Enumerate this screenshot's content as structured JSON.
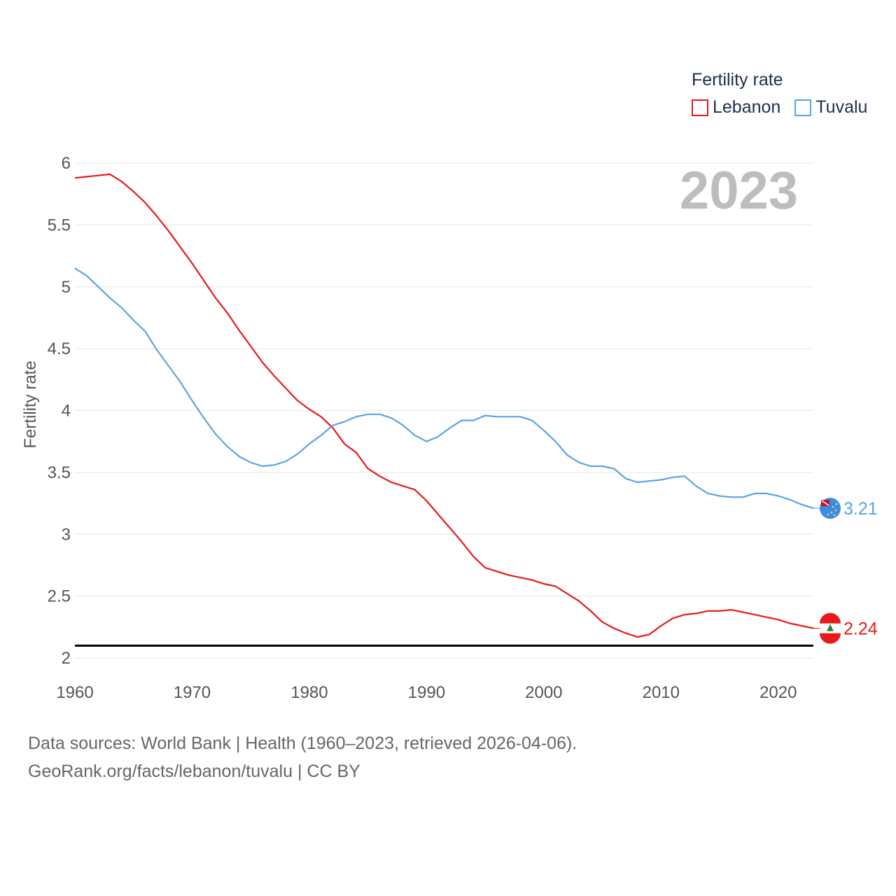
{
  "legend": {
    "title": "Fertility rate",
    "items": [
      {
        "label": "Lebanon",
        "color": "#e8191a"
      },
      {
        "label": "Tuvalu",
        "color": "#5ba3e6"
      }
    ]
  },
  "year_label": "2023",
  "sources": {
    "line1": "Data sources: World Bank | Health (1960–2023, retrieved 2026-04-06).",
    "line2": "GeoRank.org/facts/lebanon/tuvalu | CC BY"
  },
  "chart_data": {
    "type": "line",
    "title": "Fertility rate",
    "xlabel": "",
    "ylabel": "Fertility rate",
    "xlim": [
      1960,
      2023
    ],
    "ylim": [
      2,
      6
    ],
    "yticks": [
      2,
      2.5,
      3,
      3.5,
      4,
      4.5,
      5,
      5.5,
      6
    ],
    "yticklabels": [
      "2",
      "2.5",
      "3",
      "3.5",
      "4",
      "4.5",
      "5",
      "5.5",
      "6"
    ],
    "xticks": [
      1960,
      1970,
      1980,
      1990,
      2000,
      2010,
      2020
    ],
    "xticklabels": [
      "1960",
      "1970",
      "1980",
      "1990",
      "2000",
      "2010",
      "2020"
    ],
    "reference_line": 2.1,
    "x": [
      1960,
      1961,
      1962,
      1963,
      1964,
      1965,
      1966,
      1967,
      1968,
      1969,
      1970,
      1971,
      1972,
      1973,
      1974,
      1975,
      1976,
      1977,
      1978,
      1979,
      1980,
      1981,
      1982,
      1983,
      1984,
      1985,
      1986,
      1987,
      1988,
      1989,
      1990,
      1991,
      1992,
      1993,
      1994,
      1995,
      1996,
      1997,
      1998,
      1999,
      2000,
      2001,
      2002,
      2003,
      2004,
      2005,
      2006,
      2007,
      2008,
      2009,
      2010,
      2011,
      2012,
      2013,
      2014,
      2015,
      2016,
      2017,
      2018,
      2019,
      2020,
      2021,
      2022,
      2023
    ],
    "series": [
      {
        "name": "Lebanon",
        "color": "#e8191a",
        "end_label": "2.24",
        "values": [
          5.88,
          5.89,
          5.9,
          5.91,
          5.85,
          5.77,
          5.68,
          5.57,
          5.45,
          5.32,
          5.19,
          5.05,
          4.91,
          4.79,
          4.65,
          4.52,
          4.39,
          4.28,
          4.18,
          4.08,
          4.01,
          3.95,
          3.86,
          3.73,
          3.66,
          3.53,
          3.47,
          3.42,
          3.39,
          3.36,
          3.27,
          3.16,
          3.05,
          2.94,
          2.82,
          2.73,
          2.7,
          2.67,
          2.65,
          2.63,
          2.6,
          2.58,
          2.52,
          2.46,
          2.38,
          2.29,
          2.24,
          2.2,
          2.17,
          2.19,
          2.26,
          2.32,
          2.35,
          2.36,
          2.38,
          2.38,
          2.39,
          2.37,
          2.35,
          2.33,
          2.31,
          2.28,
          2.26,
          2.24
        ]
      },
      {
        "name": "Tuvalu",
        "color": "#5ba3e6",
        "end_label": "3.21",
        "values": [
          5.15,
          5.09,
          5.0,
          4.91,
          4.83,
          4.73,
          4.64,
          4.49,
          4.36,
          4.23,
          4.08,
          3.94,
          3.81,
          3.71,
          3.63,
          3.58,
          3.55,
          3.56,
          3.59,
          3.65,
          3.73,
          3.8,
          3.88,
          3.91,
          3.95,
          3.97,
          3.97,
          3.94,
          3.88,
          3.8,
          3.75,
          3.79,
          3.86,
          3.92,
          3.92,
          3.96,
          3.95,
          3.95,
          3.95,
          3.92,
          3.84,
          3.75,
          3.64,
          3.58,
          3.55,
          3.55,
          3.53,
          3.45,
          3.42,
          3.43,
          3.44,
          3.46,
          3.47,
          3.39,
          3.33,
          3.31,
          3.3,
          3.3,
          3.33,
          3.33,
          3.31,
          3.28,
          3.24,
          3.21
        ]
      }
    ]
  }
}
